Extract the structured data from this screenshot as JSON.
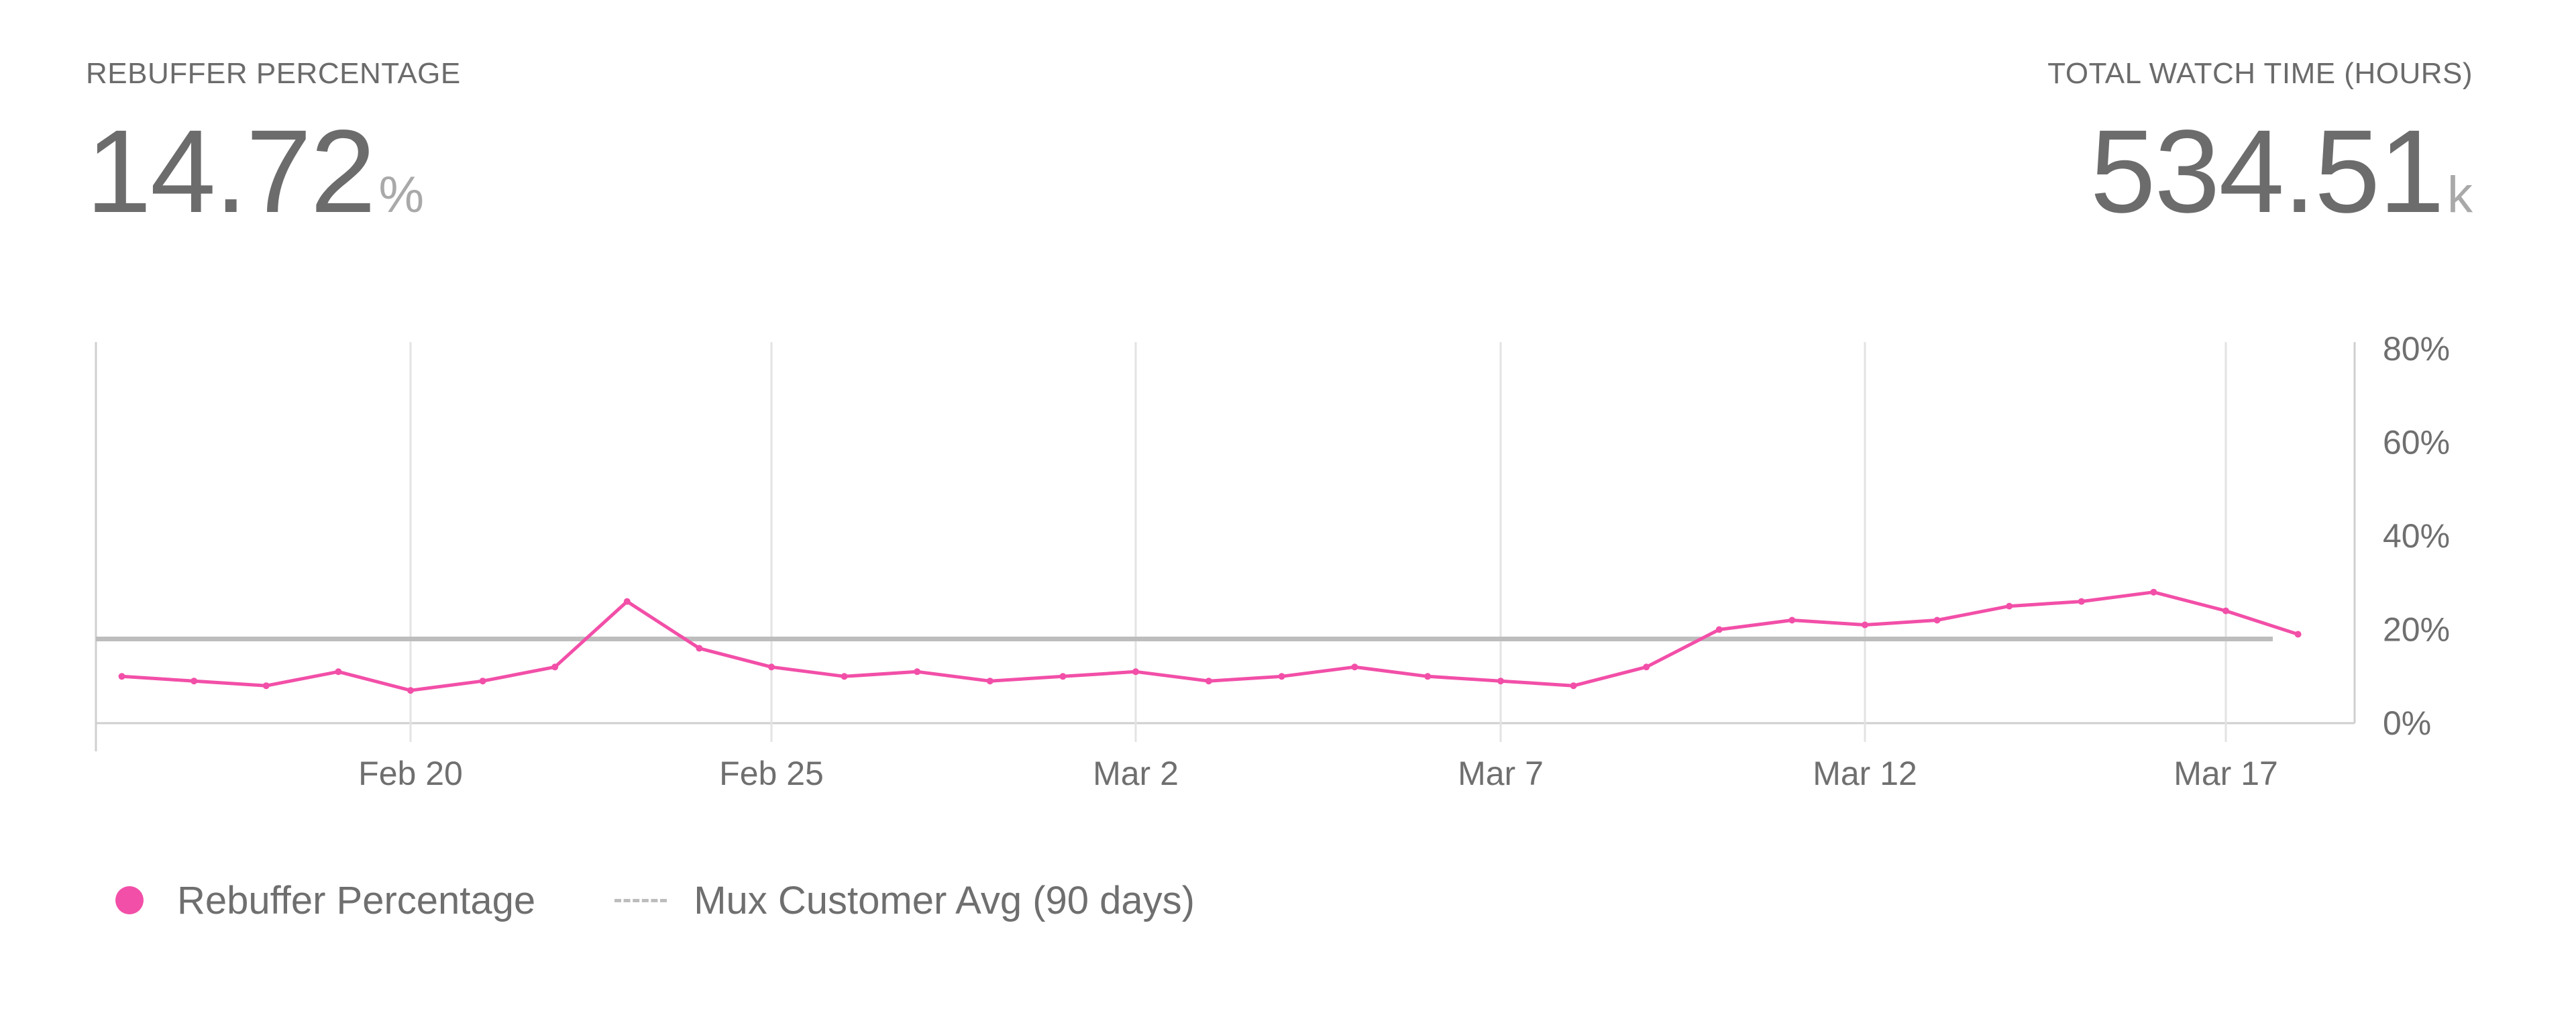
{
  "metrics": {
    "left": {
      "label": "REBUFFER PERCENTAGE",
      "value": "14.72",
      "unit": "%"
    },
    "right": {
      "label": "TOTAL WATCH TIME (HOURS)",
      "value": "534.51",
      "unit": "k"
    }
  },
  "legend": {
    "series_label": "Rebuffer Percentage",
    "reference_label": "Mux Customer Avg (90 days)"
  },
  "colors": {
    "series": "#f24fa8",
    "reference": "#bdbdbd",
    "grid": "#e3e3e3",
    "axis": "#cfcfcf"
  },
  "chart_data": {
    "type": "line",
    "x_start": "2025-02-16",
    "x_end": "2025-03-18",
    "x_ticks": [
      "Feb 20",
      "Feb 25",
      "Mar 2",
      "Mar 7",
      "Mar 12",
      "Mar 17"
    ],
    "y_ticks": [
      "0%",
      "20%",
      "40%",
      "60%",
      "80%"
    ],
    "ylim": [
      0,
      80
    ],
    "grid": true,
    "legend_position": "bottom-left",
    "reference": {
      "name": "Mux Customer Avg (90 days)",
      "value": 18
    },
    "series": [
      {
        "name": "Rebuffer Percentage",
        "unit": "%",
        "points": [
          [
            "2025-02-16",
            10
          ],
          [
            "2025-02-17",
            9
          ],
          [
            "2025-02-18",
            8
          ],
          [
            "2025-02-19",
            11
          ],
          [
            "2025-02-20",
            7
          ],
          [
            "2025-02-21",
            9
          ],
          [
            "2025-02-22",
            12
          ],
          [
            "2025-02-23",
            26
          ],
          [
            "2025-02-24",
            16
          ],
          [
            "2025-02-25",
            12
          ],
          [
            "2025-02-26",
            10
          ],
          [
            "2025-02-27",
            11
          ],
          [
            "2025-02-28",
            9
          ],
          [
            "2025-03-01",
            10
          ],
          [
            "2025-03-02",
            11
          ],
          [
            "2025-03-03",
            9
          ],
          [
            "2025-03-04",
            10
          ],
          [
            "2025-03-05",
            12
          ],
          [
            "2025-03-06",
            10
          ],
          [
            "2025-03-07",
            9
          ],
          [
            "2025-03-08",
            8
          ],
          [
            "2025-03-09",
            12
          ],
          [
            "2025-03-10",
            20
          ],
          [
            "2025-03-11",
            22
          ],
          [
            "2025-03-12",
            21
          ],
          [
            "2025-03-13",
            22
          ],
          [
            "2025-03-14",
            25
          ],
          [
            "2025-03-15",
            26
          ],
          [
            "2025-03-16",
            28
          ],
          [
            "2025-03-17",
            24
          ],
          [
            "2025-03-18",
            19
          ]
        ]
      }
    ]
  }
}
